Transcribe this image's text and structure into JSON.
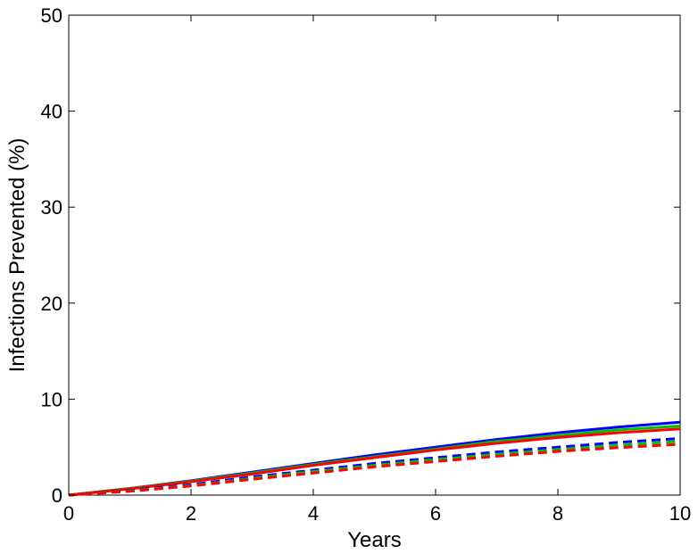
{
  "chart_data": {
    "type": "line",
    "title": "",
    "xlabel": "Years",
    "ylabel": "Infections Prevented (%)",
    "xlim": [
      0,
      10
    ],
    "ylim": [
      0,
      50
    ],
    "xticks": [
      0,
      2,
      4,
      6,
      8,
      10
    ],
    "yticks": [
      0,
      10,
      20,
      30,
      40,
      50
    ],
    "grid": false,
    "legend": "none",
    "x": [
      0,
      1,
      2,
      3,
      4,
      5,
      6,
      7,
      8,
      9,
      10
    ],
    "series": [
      {
        "color": "#0000ff",
        "style": "solid",
        "values": [
          0,
          0.7,
          1.5,
          2.4,
          3.3,
          4.2,
          5.0,
          5.8,
          6.5,
          7.1,
          7.6
        ]
      },
      {
        "color": "#00c000",
        "style": "solid",
        "values": [
          0,
          0.7,
          1.45,
          2.3,
          3.2,
          4.0,
          4.8,
          5.6,
          6.2,
          6.8,
          7.2
        ]
      },
      {
        "color": "#ff0000",
        "style": "solid",
        "values": [
          0,
          0.65,
          1.4,
          2.2,
          3.1,
          3.9,
          4.7,
          5.4,
          6.0,
          6.5,
          6.9
        ]
      },
      {
        "color": "#0000ff",
        "style": "dashed",
        "values": [
          0,
          0.5,
          1.1,
          1.9,
          2.6,
          3.3,
          3.9,
          4.5,
          5.0,
          5.5,
          5.9
        ]
      },
      {
        "color": "#00c000",
        "style": "dashed",
        "values": [
          0,
          0.45,
          1.0,
          1.75,
          2.45,
          3.1,
          3.7,
          4.25,
          4.75,
          5.2,
          5.6
        ]
      },
      {
        "color": "#ff0000",
        "style": "dashed",
        "values": [
          0,
          0.4,
          0.95,
          1.65,
          2.3,
          2.95,
          3.5,
          4.05,
          4.55,
          4.95,
          5.3
        ]
      }
    ]
  }
}
